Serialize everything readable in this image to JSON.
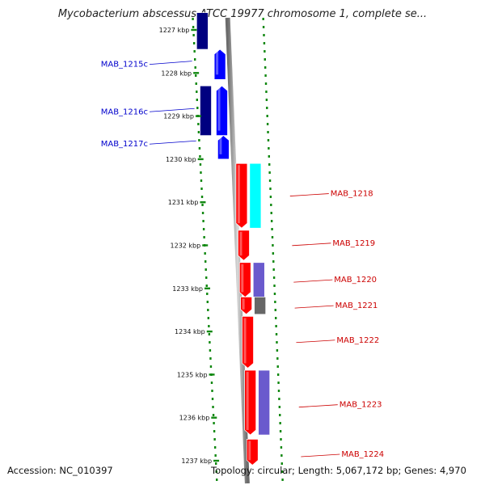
{
  "title": "Mycobacterium abscessus ATCC 19977 chromosome 1, complete se...",
  "footer": {
    "accession": "Accession: NC_010397",
    "summary": "Topology: circular; Length: 5,067,172 bp; Genes: 4,970"
  },
  "ticks": [
    {
      "label": "1227 kbp",
      "kbp": 1227
    },
    {
      "label": "1228 kbp",
      "kbp": 1228
    },
    {
      "label": "1229 kbp",
      "kbp": 1229
    },
    {
      "label": "1230 kbp",
      "kbp": 1230
    },
    {
      "label": "1231 kbp",
      "kbp": 1231
    },
    {
      "label": "1232 kbp",
      "kbp": 1232
    },
    {
      "label": "1233 kbp",
      "kbp": 1233
    },
    {
      "label": "1234 kbp",
      "kbp": 1234
    },
    {
      "label": "1235 kbp",
      "kbp": 1235
    },
    {
      "label": "1236 kbp",
      "kbp": 1236
    },
    {
      "label": "1237 kbp",
      "kbp": 1237
    }
  ],
  "genes": [
    {
      "label": "MAB_1215c",
      "strand": "reverse",
      "start_kbp": 1227.45,
      "end_kbp": 1228.15,
      "color": "#0000ff",
      "label_at_kbp": 1227.8
    },
    {
      "label": "MAB_1216c",
      "strand": "reverse",
      "start_kbp": 1228.3,
      "end_kbp": 1229.45,
      "color": "#0000ff",
      "label_at_kbp": 1228.9
    },
    {
      "label": "MAB_1217c",
      "strand": "reverse",
      "start_kbp": 1229.45,
      "end_kbp": 1230.0,
      "color": "#0000ff",
      "label_at_kbp": 1229.65
    },
    {
      "label": "MAB_1218",
      "strand": "forward",
      "start_kbp": 1230.1,
      "end_kbp": 1231.6,
      "color": "#ff0000",
      "label_at_kbp": 1230.8
    },
    {
      "label": "MAB_1219",
      "strand": "forward",
      "start_kbp": 1231.65,
      "end_kbp": 1232.35,
      "color": "#ff0000",
      "label_at_kbp": 1231.95
    },
    {
      "label": "MAB_1220",
      "strand": "forward",
      "start_kbp": 1232.4,
      "end_kbp": 1233.2,
      "color": "#ff0000",
      "label_at_kbp": 1232.8
    },
    {
      "label": "MAB_1221",
      "strand": "forward",
      "start_kbp": 1233.2,
      "end_kbp": 1233.6,
      "color": "#ff0000",
      "label_at_kbp": 1233.4
    },
    {
      "label": "MAB_1222",
      "strand": "forward",
      "start_kbp": 1233.65,
      "end_kbp": 1234.85,
      "color": "#ff0000",
      "label_at_kbp": 1234.2
    },
    {
      "label": "MAB_1223",
      "strand": "forward",
      "start_kbp": 1234.9,
      "end_kbp": 1236.4,
      "color": "#ff0000",
      "label_at_kbp": 1235.7
    },
    {
      "label": "MAB_1224",
      "strand": "forward",
      "start_kbp": 1236.5,
      "end_kbp": 1237.1,
      "color": "#ff0000",
      "label_at_kbp": 1236.85
    }
  ],
  "features": [
    {
      "name": "reverse-cog-1",
      "strand": "reverse",
      "start_kbp": 1226.6,
      "end_kbp": 1227.45,
      "color": "#000080"
    },
    {
      "name": "reverse-cog-2",
      "strand": "reverse",
      "start_kbp": 1228.3,
      "end_kbp": 1229.45,
      "color": "#000080"
    },
    {
      "name": "forward-cog-1218",
      "strand": "forward",
      "start_kbp": 1230.1,
      "end_kbp": 1231.6,
      "color": "#00ffff"
    },
    {
      "name": "forward-cog-1220",
      "strand": "forward",
      "start_kbp": 1232.4,
      "end_kbp": 1233.2,
      "color": "#6a5acd"
    },
    {
      "name": "forward-cog-1221",
      "strand": "forward",
      "start_kbp": 1233.2,
      "end_kbp": 1233.6,
      "color": "#666666"
    },
    {
      "name": "forward-cog-1223",
      "strand": "forward",
      "start_kbp": 1234.9,
      "end_kbp": 1236.4,
      "color": "#6a5acd"
    }
  ]
}
